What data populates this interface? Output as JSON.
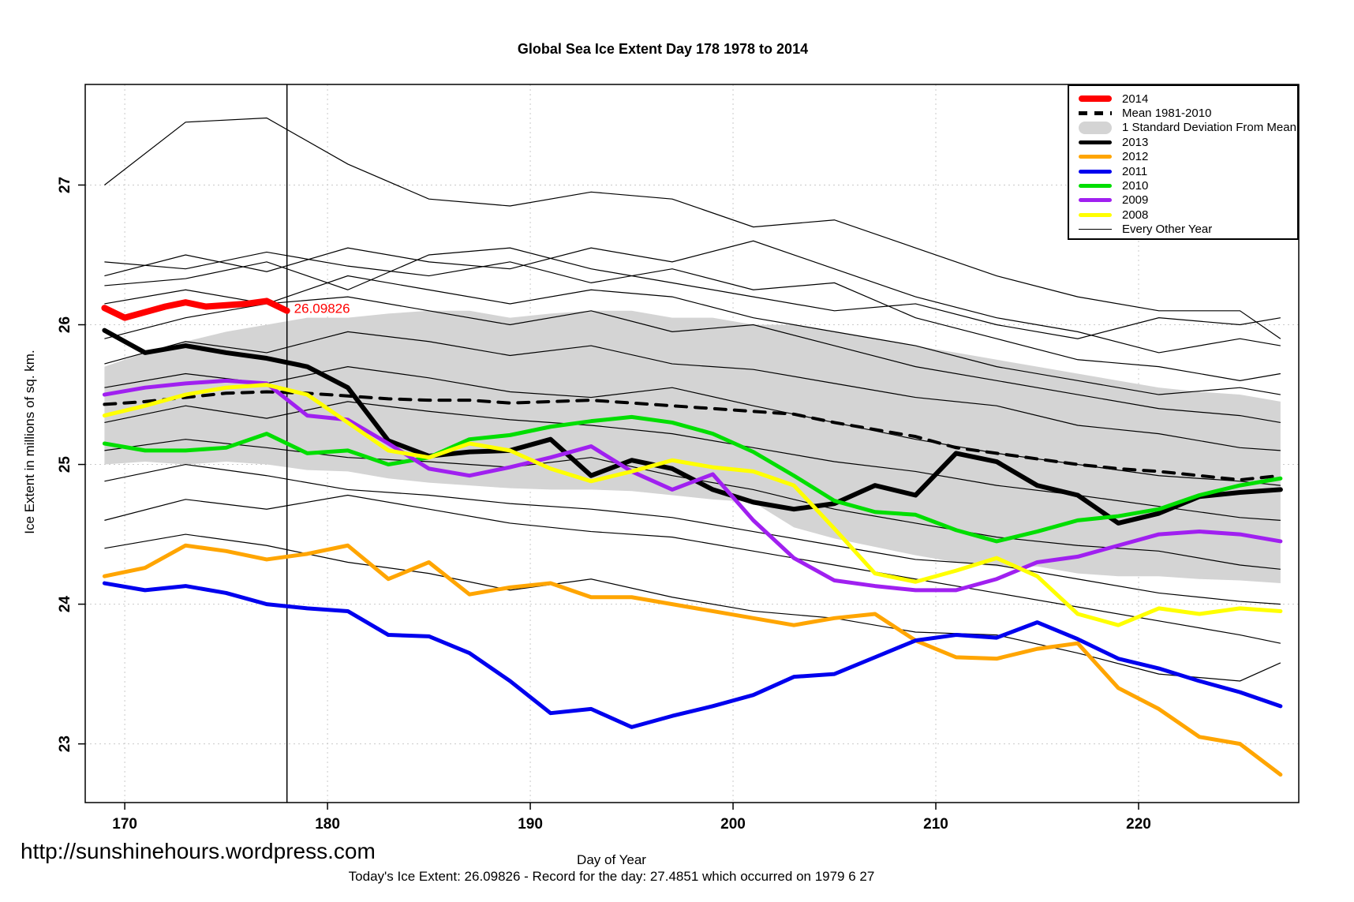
{
  "title": "Global Sea Ice Extent Day 178 1978 to 2014",
  "x_axis": {
    "label": "Day of Year",
    "ticks": [
      170,
      180,
      190,
      200,
      210,
      220
    ]
  },
  "y_axis": {
    "label": "Ice Extent in millions of sq. km.",
    "ticks": [
      23,
      24,
      25,
      26,
      27
    ]
  },
  "footer": {
    "url": "http://sunshinehours.wordpress.com",
    "status": "Today's Ice Extent: 26.09826  - Record for the day: 27.4851 which occurred on 1979 6 27"
  },
  "annotation": {
    "text": "26.09826",
    "day": 178.35,
    "value": 26.085,
    "color": "#FF0000"
  },
  "reference_line": {
    "day": 178
  },
  "colors": {
    "y2014": "#FF0000",
    "mean": "#000000",
    "band": "#D4D4D4",
    "y2013": "#000000",
    "y2012": "#FFA500",
    "y2011": "#0000EE",
    "y2010": "#00DE00",
    "y2009": "#A020F0",
    "y2008": "#FFFF00",
    "other": "#000000",
    "grid": "#C9C9C9"
  },
  "legend": [
    {
      "label": "2014",
      "color": "#FF0000",
      "style": "thick"
    },
    {
      "label": "Mean 1981-2010",
      "color": "#000000",
      "style": "dashed"
    },
    {
      "label": "1 Standard Deviation From Mean",
      "color": "#D4D4D4",
      "style": "band"
    },
    {
      "label": "2013",
      "color": "#000000",
      "style": "medium"
    },
    {
      "label": "2012",
      "color": "#FFA500",
      "style": "medium"
    },
    {
      "label": "2011",
      "color": "#0000EE",
      "style": "medium"
    },
    {
      "label": "2010",
      "color": "#00DE00",
      "style": "medium"
    },
    {
      "label": "2009",
      "color": "#A020F0",
      "style": "medium"
    },
    {
      "label": "2008",
      "color": "#FFFF00",
      "style": "medium"
    },
    {
      "label": "Every Other Year",
      "color": "#000000",
      "style": "thin"
    }
  ],
  "chart_data": {
    "type": "line",
    "title": "Global Sea Ice Extent Day 178 1978 to 2014",
    "xlabel": "Day of Year",
    "ylabel": "Ice Extent in millions of sq. km.",
    "xlim": [
      168.05,
      227.9
    ],
    "ylim": [
      22.58,
      27.72
    ],
    "grid": true,
    "legend_position": "top-right",
    "days": [
      169,
      171,
      173,
      175,
      177,
      179,
      181,
      183,
      185,
      187,
      189,
      191,
      193,
      195,
      197,
      199,
      201,
      203,
      205,
      207,
      209,
      211,
      213,
      215,
      217,
      219,
      221,
      223,
      225,
      227
    ],
    "band": {
      "name": "1 Standard Deviation From Mean",
      "color": "#D4D4D4",
      "upper": [
        25.7,
        25.8,
        25.88,
        25.95,
        26.0,
        26.05,
        26.05,
        26.08,
        26.1,
        26.1,
        26.05,
        26.08,
        26.1,
        26.1,
        26.05,
        26.05,
        26.0,
        26.0,
        25.95,
        25.9,
        25.85,
        25.8,
        25.75,
        25.7,
        25.65,
        25.6,
        25.55,
        25.52,
        25.5,
        25.45
      ],
      "lower": [
        25.0,
        25.02,
        25.0,
        25.02,
        25.0,
        24.96,
        24.95,
        24.9,
        24.87,
        24.85,
        24.83,
        24.82,
        24.82,
        24.81,
        24.78,
        24.75,
        24.73,
        24.55,
        24.47,
        24.41,
        24.35,
        24.3,
        24.27,
        24.27,
        24.22,
        24.2,
        24.2,
        24.18,
        24.17,
        24.15
      ]
    },
    "series": [
      {
        "name": "Mean 1981-2010",
        "color": "#000000",
        "width": 4,
        "style": "dashed",
        "values": [
          25.43,
          25.45,
          25.48,
          25.51,
          25.52,
          25.51,
          25.49,
          25.47,
          25.46,
          25.46,
          25.44,
          25.45,
          25.46,
          25.44,
          25.42,
          25.4,
          25.38,
          25.36,
          25.3,
          25.25,
          25.2,
          25.12,
          25.08,
          25.04,
          25.0,
          24.97,
          24.95,
          24.92,
          24.89,
          24.92
        ]
      },
      {
        "name": "2013",
        "color": "#000000",
        "width": 6,
        "style": "solid",
        "values": [
          25.96,
          25.8,
          25.85,
          25.8,
          25.76,
          25.7,
          25.55,
          25.17,
          25.06,
          25.09,
          25.1,
          25.18,
          24.92,
          25.03,
          24.97,
          24.82,
          24.73,
          24.68,
          24.72,
          24.85,
          24.78,
          25.08,
          25.02,
          24.85,
          24.78,
          24.58,
          24.65,
          24.77,
          24.8,
          24.82
        ]
      },
      {
        "name": "2012",
        "color": "#FFA500",
        "width": 5,
        "style": "solid",
        "values": [
          24.2,
          24.26,
          24.42,
          24.38,
          24.32,
          24.36,
          24.42,
          24.18,
          24.3,
          24.07,
          24.12,
          24.15,
          24.05,
          24.05,
          24.0,
          23.95,
          23.9,
          23.85,
          23.9,
          23.93,
          23.74,
          23.62,
          23.61,
          23.68,
          23.72,
          23.4,
          23.25,
          23.05,
          23.0,
          22.78
        ]
      },
      {
        "name": "2011",
        "color": "#0000EE",
        "width": 5,
        "style": "solid",
        "values": [
          24.15,
          24.1,
          24.13,
          24.08,
          24.0,
          23.97,
          23.95,
          23.78,
          23.77,
          23.65,
          23.45,
          23.22,
          23.25,
          23.12,
          23.2,
          23.27,
          23.35,
          23.48,
          23.5,
          23.62,
          23.74,
          23.78,
          23.76,
          23.87,
          23.75,
          23.61,
          23.54,
          23.45,
          23.37,
          23.27
        ]
      },
      {
        "name": "2010",
        "color": "#00DE00",
        "width": 5,
        "style": "solid",
        "values": [
          25.15,
          25.1,
          25.1,
          25.12,
          25.22,
          25.08,
          25.1,
          25.0,
          25.05,
          25.18,
          25.21,
          25.27,
          25.31,
          25.34,
          25.3,
          25.22,
          25.09,
          24.92,
          24.74,
          24.66,
          24.64,
          24.53,
          24.45,
          24.52,
          24.6,
          24.63,
          24.68,
          24.78,
          24.85,
          24.9
        ]
      },
      {
        "name": "2009",
        "color": "#A020F0",
        "width": 5,
        "style": "solid",
        "values": [
          25.5,
          25.55,
          25.58,
          25.6,
          25.58,
          25.35,
          25.32,
          25.15,
          24.97,
          24.92,
          24.98,
          25.05,
          25.13,
          24.95,
          24.82,
          24.93,
          24.6,
          24.33,
          24.17,
          24.13,
          24.1,
          24.1,
          24.18,
          24.3,
          24.34,
          24.42,
          24.5,
          24.52,
          24.5,
          24.45
        ]
      },
      {
        "name": "2008",
        "color": "#FFFF00",
        "width": 5,
        "style": "solid",
        "values": [
          25.35,
          25.42,
          25.5,
          25.55,
          25.57,
          25.5,
          25.3,
          25.1,
          25.05,
          25.15,
          25.1,
          24.97,
          24.88,
          24.95,
          25.03,
          24.98,
          24.95,
          24.85,
          24.54,
          24.22,
          24.16,
          24.24,
          24.33,
          24.2,
          23.93,
          23.85,
          23.97,
          23.93,
          23.97,
          23.95
        ]
      }
    ],
    "series_2014": {
      "name": "2014",
      "color": "#FF0000",
      "width": 8,
      "x": [
        169,
        170,
        171,
        172,
        173,
        174,
        175,
        176,
        177,
        178
      ],
      "values": [
        26.12,
        26.05,
        26.09,
        26.13,
        26.16,
        26.13,
        26.14,
        26.15,
        26.17,
        26.1
      ]
    },
    "every_other_year": {
      "name": "Every Other Year",
      "color": "#000000",
      "width": 1.2,
      "x": [
        169,
        173,
        177,
        181,
        185,
        189,
        193,
        197,
        201,
        205,
        209,
        213,
        217,
        221,
        225,
        227
      ],
      "lines": [
        [
          27.0,
          27.45,
          27.48,
          27.15,
          26.9,
          26.85,
          26.95,
          26.9,
          26.7,
          26.75,
          26.55,
          26.35,
          26.2,
          26.1,
          26.1,
          25.9
        ],
        [
          26.35,
          26.5,
          26.38,
          26.55,
          26.45,
          26.4,
          26.55,
          26.45,
          26.6,
          26.4,
          26.2,
          26.05,
          25.95,
          25.8,
          25.9,
          25.85
        ],
        [
          26.28,
          26.33,
          26.45,
          26.25,
          26.5,
          26.55,
          26.4,
          26.3,
          26.2,
          26.1,
          26.15,
          26.0,
          25.9,
          26.05,
          26.0,
          26.05
        ],
        [
          26.45,
          26.4,
          26.52,
          26.42,
          26.35,
          26.45,
          26.3,
          26.4,
          26.25,
          26.3,
          26.05,
          25.9,
          25.75,
          25.7,
          25.6,
          25.65
        ],
        [
          26.15,
          26.25,
          26.15,
          26.35,
          26.25,
          26.15,
          26.25,
          26.2,
          26.05,
          25.95,
          25.85,
          25.7,
          25.6,
          25.5,
          25.55,
          25.5
        ],
        [
          25.9,
          26.05,
          26.15,
          26.2,
          26.1,
          26.0,
          26.1,
          25.95,
          26.0,
          25.85,
          25.7,
          25.6,
          25.5,
          25.4,
          25.35,
          25.3
        ],
        [
          25.72,
          25.88,
          25.8,
          25.95,
          25.88,
          25.78,
          25.85,
          25.72,
          25.68,
          25.58,
          25.48,
          25.42,
          25.28,
          25.22,
          25.12,
          25.1
        ],
        [
          25.55,
          25.65,
          25.58,
          25.7,
          25.62,
          25.52,
          25.48,
          25.55,
          25.42,
          25.3,
          25.18,
          25.08,
          25.0,
          24.92,
          24.88,
          24.85
        ],
        [
          25.3,
          25.42,
          25.33,
          25.45,
          25.38,
          25.32,
          25.28,
          25.22,
          25.12,
          25.02,
          24.95,
          24.85,
          24.78,
          24.7,
          24.62,
          24.6
        ],
        [
          25.1,
          25.18,
          25.12,
          25.05,
          25.02,
          24.98,
          25.05,
          24.92,
          24.82,
          24.68,
          24.58,
          24.48,
          24.42,
          24.38,
          24.28,
          24.25
        ],
        [
          24.88,
          25.0,
          24.92,
          24.82,
          24.78,
          24.72,
          24.68,
          24.62,
          24.52,
          24.42,
          24.32,
          24.28,
          24.18,
          24.08,
          24.02,
          24.0
        ],
        [
          24.6,
          24.75,
          24.68,
          24.78,
          24.68,
          24.58,
          24.52,
          24.48,
          24.38,
          24.28,
          24.18,
          24.08,
          23.98,
          23.88,
          23.78,
          23.72
        ],
        [
          24.4,
          24.5,
          24.42,
          24.3,
          24.22,
          24.1,
          24.18,
          24.05,
          23.95,
          23.9,
          23.8,
          23.78,
          23.65,
          23.5,
          23.45,
          23.58
        ]
      ]
    }
  }
}
